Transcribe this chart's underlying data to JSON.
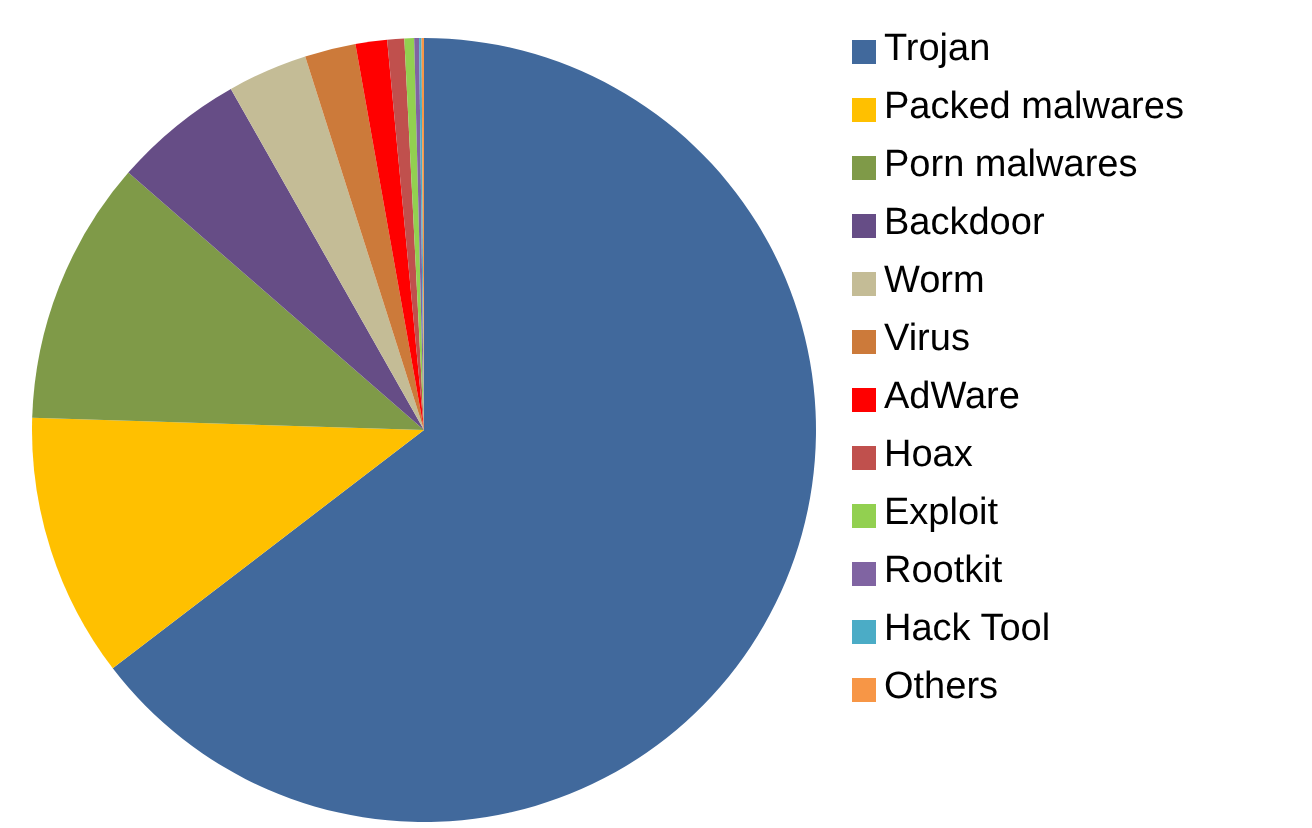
{
  "chart_data": {
    "type": "pie",
    "categories": [
      "Trojan",
      "Packed malwares",
      "Porn malwares",
      "Backdoor",
      "Worm",
      "Virus",
      "AdWare",
      "Hoax",
      "Exploit",
      "Rootkit",
      "Hack Tool",
      "Others"
    ],
    "values": [
      64.6,
      10.9,
      10.9,
      5.4,
      3.3,
      2.1,
      1.3,
      0.7,
      0.4,
      0.2,
      0.1,
      0.1
    ],
    "colors": [
      "#41699c",
      "#ffc000",
      "#7f9a48",
      "#664d86",
      "#c4bc96",
      "#cc7a3a",
      "#ff0000",
      "#c0504d",
      "#92d050",
      "#8064a2",
      "#4bacc6",
      "#f79646"
    ],
    "legend": "right"
  }
}
